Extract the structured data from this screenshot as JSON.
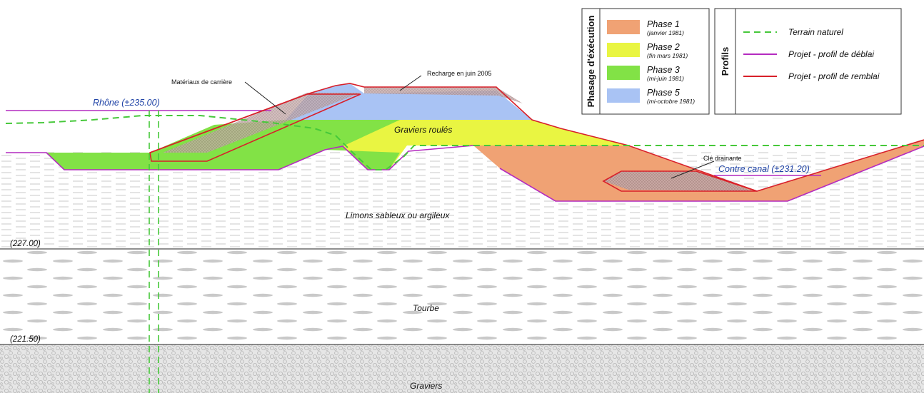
{
  "layers": {
    "limons": "Limons sableux ou argileux",
    "tourbe": "Tourbe",
    "graviers": "Graviers",
    "graviers_roules": "Graviers roulés"
  },
  "elevations": {
    "e227": "(227.00)",
    "e221": "(221.50)"
  },
  "labels": {
    "rhone": "Rhône (±235.00)",
    "contre_canal": "Contre canal (±231.20)",
    "materiaux": "Matériaux de carrière",
    "recharge": "Recharge en juin 2005",
    "cle": "Clé drainante"
  },
  "legend_phases": {
    "title": "Phasage d'éxécution",
    "items": [
      {
        "name": "Phase 1",
        "date": "(janvier 1981)",
        "color": "#f0a274"
      },
      {
        "name": "Phase 2",
        "date": "(fin mars 1981)",
        "color": "#e9f542"
      },
      {
        "name": "Phase 3",
        "date": "(mi-juin 1981)",
        "color": "#82e246"
      },
      {
        "name": "Phase 5",
        "date": "(mi-octobre 1981)",
        "color": "#a9c3f4"
      }
    ]
  },
  "legend_profiles": {
    "title": "Profils",
    "items": [
      {
        "name": "Terrain naturel",
        "color": "#46c83a",
        "style": "dashed"
      },
      {
        "name": "Projet - profil de déblai",
        "color": "#b42bc0",
        "style": "solid"
      },
      {
        "name": "Projet - profil de remblai",
        "color": "#d8202a",
        "style": "solid"
      }
    ]
  }
}
